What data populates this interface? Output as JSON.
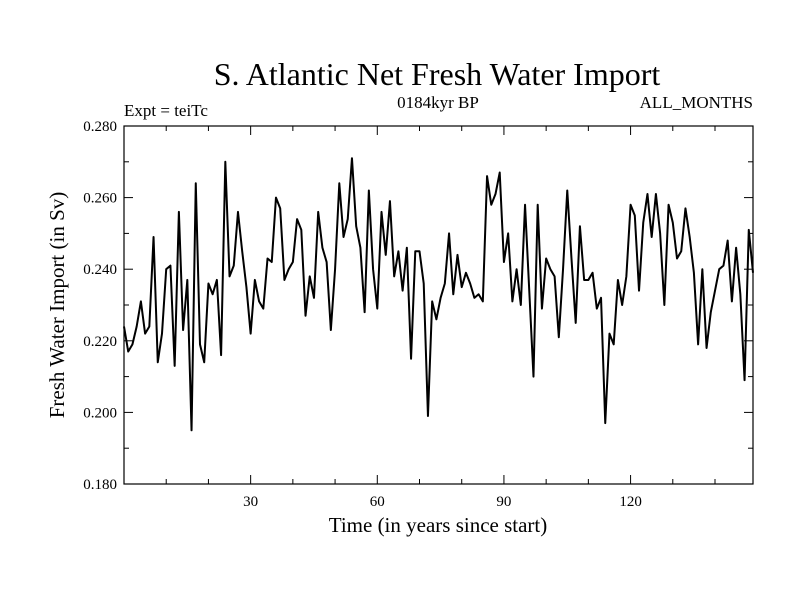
{
  "chart_data": {
    "type": "line",
    "title": "S. Atlantic Net Fresh Water Import",
    "subtitle_left": "Expt = teiTc",
    "subtitle_center": "0184kyr BP",
    "subtitle_right": "ALL_MONTHS",
    "xlabel": "Time (in years since start)",
    "ylabel": "Fresh Water Import (in Sv)",
    "xlim": [
      0,
      149
    ],
    "ylim": [
      0.18,
      0.28
    ],
    "xticks": [
      30,
      60,
      90,
      120
    ],
    "xtick_labels": [
      "30",
      "60",
      "90",
      "120"
    ],
    "yticks": [
      0.18,
      0.2,
      0.22,
      0.24,
      0.26,
      0.28
    ],
    "ytick_labels": [
      "0.180",
      "0.200",
      "0.220",
      "0.240",
      "0.260",
      "0.280"
    ],
    "series": [
      {
        "name": "Fresh Water Import",
        "x_start": 0,
        "x_step": 1,
        "values": [
          0.224,
          0.217,
          0.219,
          0.224,
          0.231,
          0.222,
          0.224,
          0.249,
          0.214,
          0.222,
          0.24,
          0.241,
          0.213,
          0.256,
          0.223,
          0.237,
          0.195,
          0.264,
          0.219,
          0.214,
          0.236,
          0.233,
          0.237,
          0.216,
          0.27,
          0.238,
          0.241,
          0.256,
          0.245,
          0.235,
          0.222,
          0.237,
          0.231,
          0.229,
          0.243,
          0.242,
          0.26,
          0.257,
          0.237,
          0.24,
          0.242,
          0.254,
          0.251,
          0.227,
          0.238,
          0.232,
          0.256,
          0.246,
          0.242,
          0.223,
          0.24,
          0.264,
          0.249,
          0.254,
          0.271,
          0.252,
          0.246,
          0.228,
          0.262,
          0.24,
          0.229,
          0.256,
          0.244,
          0.259,
          0.238,
          0.245,
          0.234,
          0.246,
          0.215,
          0.245,
          0.245,
          0.236,
          0.199,
          0.231,
          0.226,
          0.232,
          0.236,
          0.25,
          0.233,
          0.244,
          0.235,
          0.239,
          0.236,
          0.232,
          0.233,
          0.231,
          0.266,
          0.258,
          0.261,
          0.267,
          0.242,
          0.25,
          0.231,
          0.24,
          0.23,
          0.258,
          0.234,
          0.21,
          0.258,
          0.229,
          0.243,
          0.24,
          0.238,
          0.221,
          0.24,
          0.262,
          0.243,
          0.225,
          0.252,
          0.237,
          0.237,
          0.239,
          0.229,
          0.232,
          0.197,
          0.222,
          0.219,
          0.237,
          0.23,
          0.238,
          0.258,
          0.255,
          0.234,
          0.253,
          0.261,
          0.249,
          0.261,
          0.25,
          0.23,
          0.258,
          0.253,
          0.243,
          0.245,
          0.257,
          0.249,
          0.239,
          0.219,
          0.24,
          0.218,
          0.228,
          0.234,
          0.24,
          0.241,
          0.248,
          0.231,
          0.246,
          0.233,
          0.209,
          0.251,
          0.239
        ]
      }
    ]
  }
}
